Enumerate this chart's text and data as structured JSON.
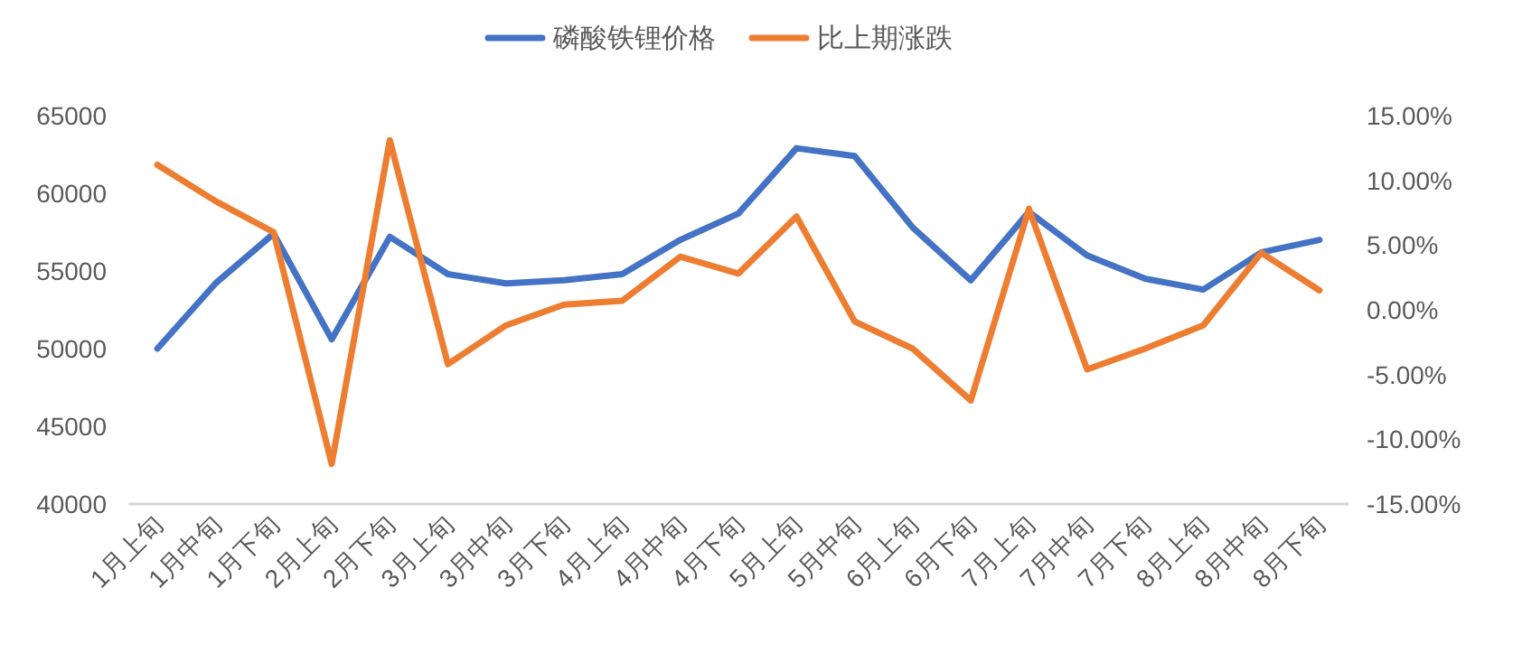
{
  "chart_data": {
    "type": "line",
    "legend": "top",
    "grid": false,
    "categories": [
      "1月上旬",
      "1月中旬",
      "1月下旬",
      "2月上旬",
      "2月下旬",
      "3月上旬",
      "3月中旬",
      "3月下旬",
      "4月上旬",
      "4月中旬",
      "4月下旬",
      "5月上旬",
      "5月中旬",
      "6月上旬",
      "6月下旬",
      "7月上旬",
      "7月中旬",
      "7月下旬",
      "8月上旬",
      "8月中旬",
      "8月下旬"
    ],
    "series": [
      {
        "name": "磷酸铁锂价格",
        "color": "#4472c4",
        "values": [
          50000,
          54200,
          57400,
          50600,
          57200,
          54800,
          54200,
          54400,
          54800,
          57000,
          58700,
          62900,
          62400,
          57800,
          54400,
          58800,
          56000,
          54500,
          53800,
          56200,
          57000
        ]
      },
      {
        "name": "比上期涨跌",
        "color": "#ed7d31",
        "axis": "y2",
        "values": [
          11.2,
          8.4,
          6.0,
          -11.9,
          13.1,
          -4.2,
          -1.2,
          0.4,
          0.7,
          4.1,
          2.8,
          7.2,
          -0.9,
          -3.0,
          -7.0,
          7.8,
          -4.6,
          -3.0,
          -1.2,
          4.4,
          1.5
        ]
      }
    ],
    "ylim": [
      40000,
      65000
    ],
    "yticks": [
      40000,
      45000,
      50000,
      55000,
      60000,
      65000
    ],
    "y2lim": [
      -15,
      15
    ],
    "y2ticks": [
      {
        "value": -15,
        "label": "-15.00%"
      },
      {
        "value": -10,
        "label": "-10.00%"
      },
      {
        "value": -5,
        "label": "-5.00%"
      },
      {
        "value": 0,
        "label": "0.00%"
      },
      {
        "value": 5,
        "label": "5.00%"
      },
      {
        "value": 10,
        "label": "10.00%"
      },
      {
        "value": 15,
        "label": "15.00%"
      }
    ]
  }
}
